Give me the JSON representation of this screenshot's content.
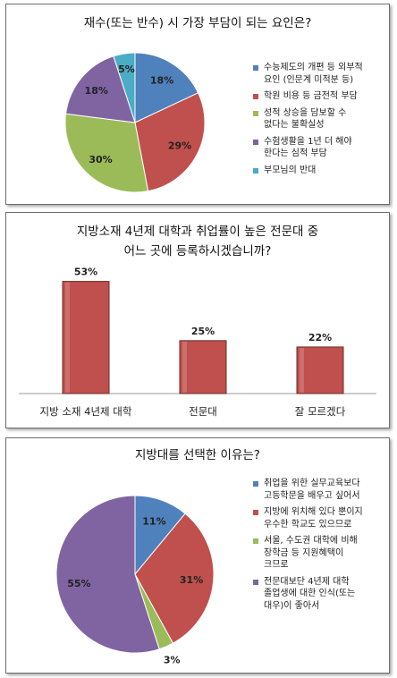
{
  "charts": [
    {
      "chart_data": {
        "type": "pie",
        "title": "재수(또는 반수) 시 가장 부담이 되는 요인은?",
        "series": [
          {
            "label": "수능제도의 개편 등 외부적 요인 (인문계 미적분 등)",
            "value": 18,
            "display": "18%",
            "color": "#4f81bd"
          },
          {
            "label": "학원 비용 등 금전적 부담",
            "value": 29,
            "display": "29%",
            "color": "#c0504d"
          },
          {
            "label": "성적 상승을 담보할 수 없다는 불확실성",
            "value": 30,
            "display": "30%",
            "color": "#9bbb59"
          },
          {
            "label": "수험생활을 1년 더 해야 한다는 심적 부담",
            "value": 18,
            "display": "18%",
            "color": "#8064a2"
          },
          {
            "label": "부모님의 반대",
            "value": 5,
            "display": "5%",
            "color": "#4bacc6"
          }
        ]
      },
      "legend_lines": [
        "수능제도의 개편 등 외부적\n요인 (인문계 미적분 등)",
        "학원 비용 등 금전적 부담",
        "성적 상승을 담보할 수\n없다는 불확실성",
        "수험생활을 1년 더 해야\n한다는 심적 부담",
        "부모님의 반대"
      ]
    },
    {
      "chart_data": {
        "type": "bar",
        "title": "지방소재 4년제 대학과  취업률이 높은 전문대 중\n어느 곳에 등록하시겠습니까?",
        "categories": [
          "지방 소재 4년제 대학",
          "전문대",
          "잘 모르겠다"
        ],
        "values": [
          53,
          25,
          22
        ],
        "labels": [
          "53%",
          "25%",
          "22%"
        ],
        "ylim": [
          0,
          60
        ],
        "color": "#c0504d"
      }
    },
    {
      "chart_data": {
        "type": "pie",
        "title": "지방대를 선택한 이유는?",
        "series": [
          {
            "label": "취업을 위한 실무교육보다 고등학문을 배우고 싶어서",
            "value": 11,
            "display": "11%",
            "color": "#4f81bd"
          },
          {
            "label": "지방에 위치해 있다 뿐이지 우수한 학교도 있으므로",
            "value": 31,
            "display": "31%",
            "color": "#c0504d"
          },
          {
            "label": "서울, 수도권 대학에 비해 장학금 등 지원혜택이 크므로",
            "value": 3,
            "display": "3%",
            "color": "#9bbb59"
          },
          {
            "label": "전문대보단 4년제 대학 졸업생에 대한 인식(또는 대우)이 좋아서",
            "value": 55,
            "display": "55%",
            "color": "#8064a2"
          }
        ]
      },
      "legend_lines": [
        "취업을 위한 실무교육보다\n고등학문을 배우고 싶어서",
        "지방에 위치해 있다 뿐이지\n우수한 학교도 있으므로",
        "서울, 수도권 대학에 비해\n장학금 등 지원혜택이\n크므로",
        "전문대보단 4년제 대학\n졸업생에 대한 인식(또는\n대우)이 좋아서"
      ]
    }
  ]
}
